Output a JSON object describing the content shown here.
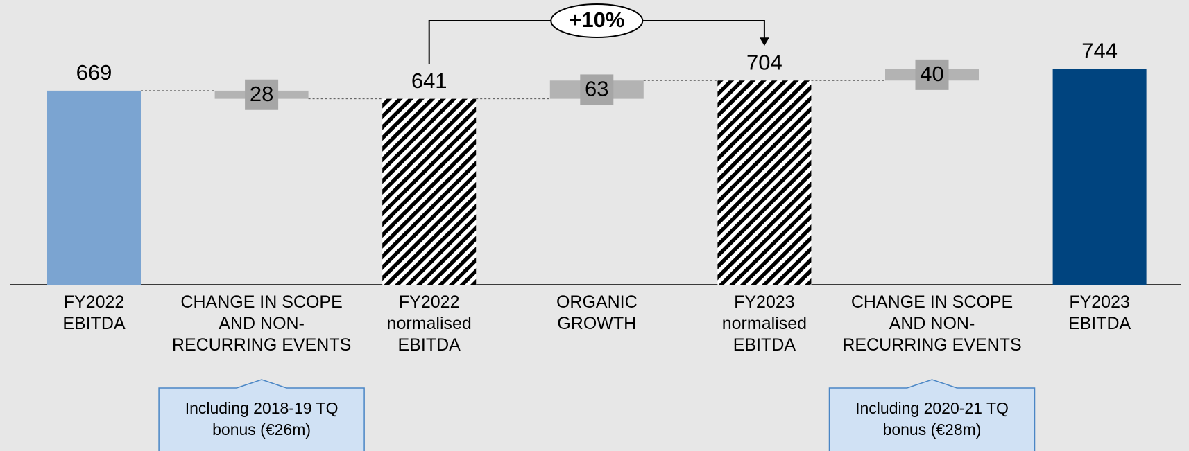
{
  "chart_data": {
    "type": "waterfall",
    "categories": [
      "FY2022\nEBITDA",
      "CHANGE IN SCOPE\nAND NON-\nRECURRING EVENTS",
      "FY2022\nnormalised\nEBITDA",
      "ORGANIC\nGROWTH",
      "FY2023\nnormalised\nEBITDA",
      "CHANGE IN SCOPE\nAND NON-\nRECURRING EVENTS",
      "FY2023\nEBITDA"
    ],
    "measures": [
      "total",
      "relative",
      "total",
      "relative",
      "total",
      "relative",
      "total"
    ],
    "values": [
      669,
      -28,
      641,
      63,
      704,
      40,
      744
    ],
    "value_labels": [
      "669",
      "28",
      "641",
      "63",
      "704",
      "40",
      "744"
    ],
    "colors": [
      "#7ba4d1",
      "#b3b3b3",
      "#000000",
      "#b3b3b3",
      "#000000",
      "#b3b3b3",
      "#00447f"
    ],
    "hatched": [
      false,
      false,
      true,
      false,
      true,
      false,
      false
    ],
    "growth_annotation": {
      "label": "+10%",
      "from": 2,
      "to": 4
    },
    "notes": [
      {
        "category": 1,
        "text": "Including 2018-19 TQ\nbonus (€26m)"
      },
      {
        "category": 5,
        "text": "Including 2020-21 TQ\nbonus (€28m)"
      }
    ]
  }
}
